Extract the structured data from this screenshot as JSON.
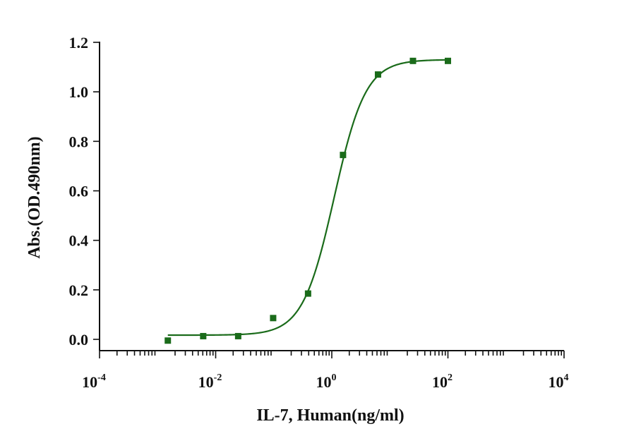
{
  "chart_data": {
    "type": "scatter",
    "title": "",
    "xlabel": "IL-7, Human(ng/ml)",
    "ylabel": "Abs.(OD.490nm)",
    "xscale": "log",
    "xlim": [
      0.0001,
      10000
    ],
    "ylim": [
      -0.05,
      1.2
    ],
    "grid": false,
    "x_ticks": [
      {
        "value": 0.0001,
        "base": "10",
        "exp": "-4"
      },
      {
        "value": 0.01,
        "base": "10",
        "exp": "-2"
      },
      {
        "value": 1,
        "base": "10",
        "exp": "0"
      },
      {
        "value": 100,
        "base": "10",
        "exp": "2"
      },
      {
        "value": 10000,
        "base": "10",
        "exp": "4"
      }
    ],
    "y_ticks": [
      "0.0",
      "0.2",
      "0.4",
      "0.6",
      "0.8",
      "1.0",
      "1.2"
    ],
    "series": [
      {
        "color": "#1a6b1a",
        "marker": "square",
        "x": [
          0.0015,
          0.0061,
          0.0244,
          0.0977,
          0.39,
          1.56,
          6.25,
          25,
          100
        ],
        "y": [
          -0.005,
          0.013,
          0.013,
          0.086,
          0.185,
          0.745,
          1.07,
          1.125,
          1.125
        ],
        "fit": {
          "model": "4PL",
          "bottom": 0.017,
          "top": 1.13,
          "ec50": 1.1,
          "hill": 1.6
        }
      }
    ]
  }
}
